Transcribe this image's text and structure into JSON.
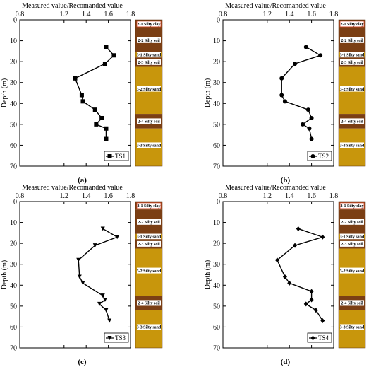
{
  "figure": {
    "x_axis_title": "Measured value/Recomanded value",
    "y_axis_title": "Depth (m)"
  },
  "colors": {
    "line": "#000000",
    "silty_soil": "#7b3f14",
    "silty_sand": "#c8960c",
    "layer_label_box": "#ffffff",
    "top_label_border": "#d9482a"
  },
  "soil_column": [
    {
      "name": "2-1 Silty clay",
      "top": 0,
      "bottom": 4,
      "type": "silty_soil",
      "label": "2-1 Silty clay"
    },
    {
      "name": "2-2 Silty soil",
      "top": 4,
      "bottom": 15.5,
      "type": "silty_soil",
      "label": "2-2 Silty soil"
    },
    {
      "name": "3-1 Silty sand",
      "top": 15.5,
      "bottom": 18,
      "type": "silty_sand",
      "label": "3-1 Silty sand"
    },
    {
      "name": "2-3 Silty soil",
      "top": 18,
      "bottom": 22.5,
      "type": "silty_soil",
      "label": "2-3 Silty soil"
    },
    {
      "name": "3-2 Silty sand",
      "top": 22.5,
      "bottom": 45,
      "type": "silty_sand",
      "label": "3-2 Silty sand"
    },
    {
      "name": "2-4 Silty soil",
      "top": 45,
      "bottom": 52,
      "type": "silty_soil",
      "label": "2-4 Silty soil"
    },
    {
      "name": "3-3 Silty sand",
      "top": 52,
      "bottom": 70,
      "type": "silty_sand",
      "label": "3-3 Silty sand"
    }
  ],
  "chart_data": [
    {
      "type": "line",
      "panel_label": "(a)",
      "xlabel": "Measured value/Recomanded value",
      "ylabel": "Depth (m)",
      "xlim": [
        0.8,
        1.8
      ],
      "ylim": [
        0,
        70
      ],
      "y_inverted": true,
      "x_ticks": [
        "0.8",
        "1.2",
        "1.4",
        "1.6",
        "1.8"
      ],
      "y_ticks": [
        "0",
        "10",
        "20",
        "30",
        "40",
        "50",
        "60",
        "70"
      ],
      "series": [
        {
          "name": "TS1",
          "marker": "square",
          "x": [
            1.58,
            1.65,
            1.57,
            1.3,
            1.36,
            1.37,
            1.48,
            1.54,
            1.49,
            1.58,
            1.58
          ],
          "y": [
            13,
            17,
            21,
            28,
            36,
            39,
            43,
            47,
            50,
            52,
            57
          ]
        }
      ]
    },
    {
      "type": "line",
      "panel_label": "(b)",
      "xlabel": "Measured value/Recomanded value",
      "ylabel": "Depth (m)",
      "xlim": [
        0.8,
        1.8
      ],
      "ylim": [
        0,
        70
      ],
      "y_inverted": true,
      "x_ticks": [
        "0.8",
        "1.2",
        "1.4",
        "1.6",
        "1.8"
      ],
      "y_ticks": [
        "0",
        "10",
        "20",
        "30",
        "40",
        "50",
        "60",
        "70"
      ],
      "series": [
        {
          "name": "TS2",
          "marker": "circle",
          "x": [
            1.55,
            1.68,
            1.45,
            1.33,
            1.33,
            1.36,
            1.57,
            1.6,
            1.52,
            1.58,
            1.6
          ],
          "y": [
            13,
            17,
            21,
            28,
            36,
            39,
            43,
            47,
            50,
            52,
            57
          ]
        }
      ]
    },
    {
      "type": "line",
      "panel_label": "(c)",
      "xlabel": "Measured value/Recomanded value",
      "ylabel": "Depth (m)",
      "xlim": [
        0.8,
        1.8
      ],
      "ylim": [
        0,
        70
      ],
      "y_inverted": true,
      "x_ticks": [
        "0.8",
        "1.2",
        "1.4",
        "1.6",
        "1.8"
      ],
      "y_ticks": [
        "0",
        "10",
        "20",
        "30",
        "40",
        "50",
        "60",
        "70"
      ],
      "series": [
        {
          "name": "TS3",
          "marker": "triangle-down",
          "x": [
            1.55,
            1.68,
            1.48,
            1.33,
            1.34,
            1.37,
            1.55,
            1.57,
            1.52,
            1.58,
            1.61
          ],
          "y": [
            13,
            17,
            21,
            28,
            36,
            39,
            45,
            47,
            49,
            52,
            57
          ]
        }
      ]
    },
    {
      "type": "line",
      "panel_label": "(d)",
      "xlabel": "Measured value/Recomanded value",
      "ylabel": "Depth (m)",
      "xlim": [
        0.8,
        1.8
      ],
      "ylim": [
        0,
        70
      ],
      "y_inverted": true,
      "x_ticks": [
        "0.8",
        "1.2",
        "1.4",
        "1.6",
        "1.8"
      ],
      "y_ticks": [
        "0",
        "10",
        "20",
        "30",
        "40",
        "50",
        "60",
        "70"
      ],
      "series": [
        {
          "name": "TS4",
          "marker": "diamond",
          "x": [
            1.48,
            1.7,
            1.45,
            1.29,
            1.36,
            1.4,
            1.6,
            1.6,
            1.55,
            1.64,
            1.7
          ],
          "y": [
            13,
            17,
            21,
            28,
            36,
            39,
            43,
            47,
            49,
            52,
            57
          ]
        }
      ]
    }
  ]
}
